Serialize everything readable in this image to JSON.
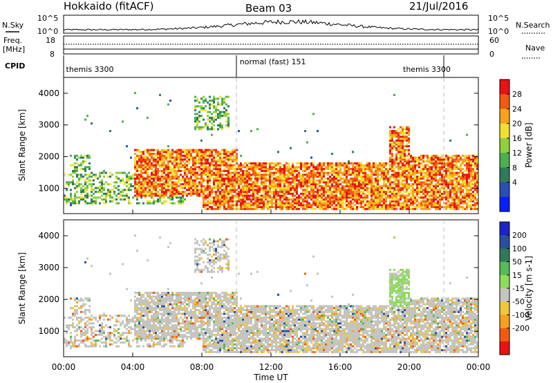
{
  "header": {
    "radar": "Hokkaido (fitACF)",
    "beam": "Beam 03",
    "date": "21/Jul/2016"
  },
  "top_panels": {
    "nsky_label": "N.Sky",
    "nsky_ticks": [
      "10^5",
      "10^0"
    ],
    "nsearch_label": "N.Search",
    "nsearch_ticks": [
      "10^5",
      "10^0"
    ],
    "freq_label_1": "Freq.",
    "freq_label_2": "[MHz]",
    "freq_ticks": [
      "18",
      "8"
    ],
    "nave_label": "Nave",
    "nave_ticks": [
      "60",
      "0"
    ],
    "cpid_label": "CPID",
    "cpid_segments": [
      {
        "label": "themis 3300",
        "start": 0.0,
        "end": 10.0
      },
      {
        "label": "normal (fast) 151",
        "start": 10.0,
        "end": 22.0
      },
      {
        "label": "themis 3300",
        "start": 22.0,
        "end": 24.0
      }
    ],
    "cpid_label_hours": [
      0.1,
      10.15,
      19.6
    ]
  },
  "chart_data": [
    {
      "type": "heatmap",
      "panel": "power",
      "xlabel": "",
      "ylabel": "Slant Range [km]",
      "xlim_hours": [
        0,
        24
      ],
      "ylim": [
        200,
        4500
      ],
      "yticks": [
        1000,
        2000,
        3000,
        4000
      ],
      "colorbar": {
        "label": "Power [dB]",
        "ticks": [
          "4",
          "8",
          "12",
          "16",
          "20",
          "24",
          "28"
        ],
        "colors": [
          "#0a1fff",
          "#2a4fb0",
          "#2f7a5a",
          "#4caf50",
          "#8fd13b",
          "#f0e030",
          "#f7a21c",
          "#f25a12",
          "#ea1212"
        ]
      },
      "regions": [
        {
          "x": [
            0.3,
            1.5
          ],
          "y": [
            800,
            2000
          ],
          "level": "mid"
        },
        {
          "x": [
            0.0,
            7.0
          ],
          "y": [
            500,
            1500
          ],
          "level": "mid"
        },
        {
          "x": [
            4.0,
            10.0
          ],
          "y": [
            700,
            2200
          ],
          "level": "high"
        },
        {
          "x": [
            8.0,
            20.5
          ],
          "y": [
            300,
            1800
          ],
          "level": "high"
        },
        {
          "x": [
            7.5,
            9.5
          ],
          "y": [
            2800,
            3900
          ],
          "level": "mid"
        },
        {
          "x": [
            18.8,
            20.0
          ],
          "y": [
            1800,
            2900
          ],
          "level": "high"
        },
        {
          "x": [
            19.8,
            24.0
          ],
          "y": [
            300,
            2000
          ],
          "level": "high"
        }
      ]
    },
    {
      "type": "heatmap",
      "panel": "velocity",
      "xlabel": "Time UT",
      "ylabel": "Slant Range [km]",
      "xlim_hours": [
        0,
        24
      ],
      "ylim": [
        200,
        4500
      ],
      "xticks": [
        "00:00",
        "04:00",
        "08:00",
        "12:00",
        "16:00",
        "20:00",
        "00:00"
      ],
      "yticks": [
        1000,
        2000,
        3000,
        4000
      ],
      "colorbar": {
        "label": "Velocity [m s-1]",
        "ticks": [
          "200",
          "100",
          "50",
          "15",
          "-15",
          "-50",
          "-100",
          "-200"
        ],
        "colors": [
          "#1a24c8",
          "#2a4fa0",
          "#2f7a5a",
          "#55bb55",
          "#8ddc5a",
          "#c4c4c0",
          "#f0c83a",
          "#f7a21c",
          "#f25a12",
          "#ea1212"
        ]
      },
      "ground_scatter_color": "#c4c4c0"
    }
  ]
}
